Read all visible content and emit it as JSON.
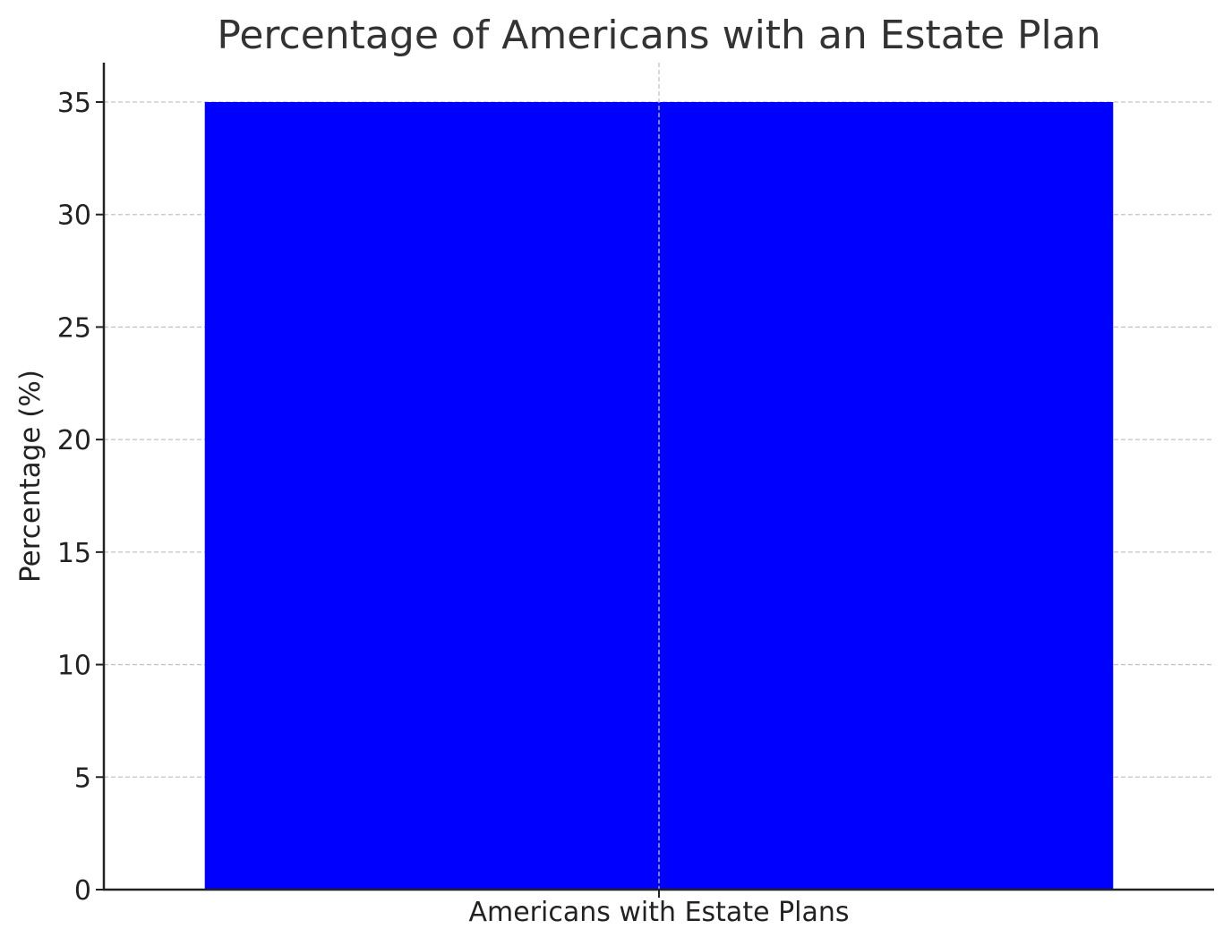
{
  "chart_data": {
    "type": "bar",
    "title": "Percentage of Americans with an Estate Plan",
    "xlabel": "",
    "ylabel": "Percentage (%)",
    "categories": [
      "Americans with Estate Plans"
    ],
    "values": [
      35
    ],
    "ylim": [
      0,
      36.75
    ],
    "yticks": [
      0,
      5,
      10,
      15,
      20,
      25,
      30,
      35
    ],
    "grid": true,
    "legend": "none",
    "bar_color": "#0000ff"
  }
}
